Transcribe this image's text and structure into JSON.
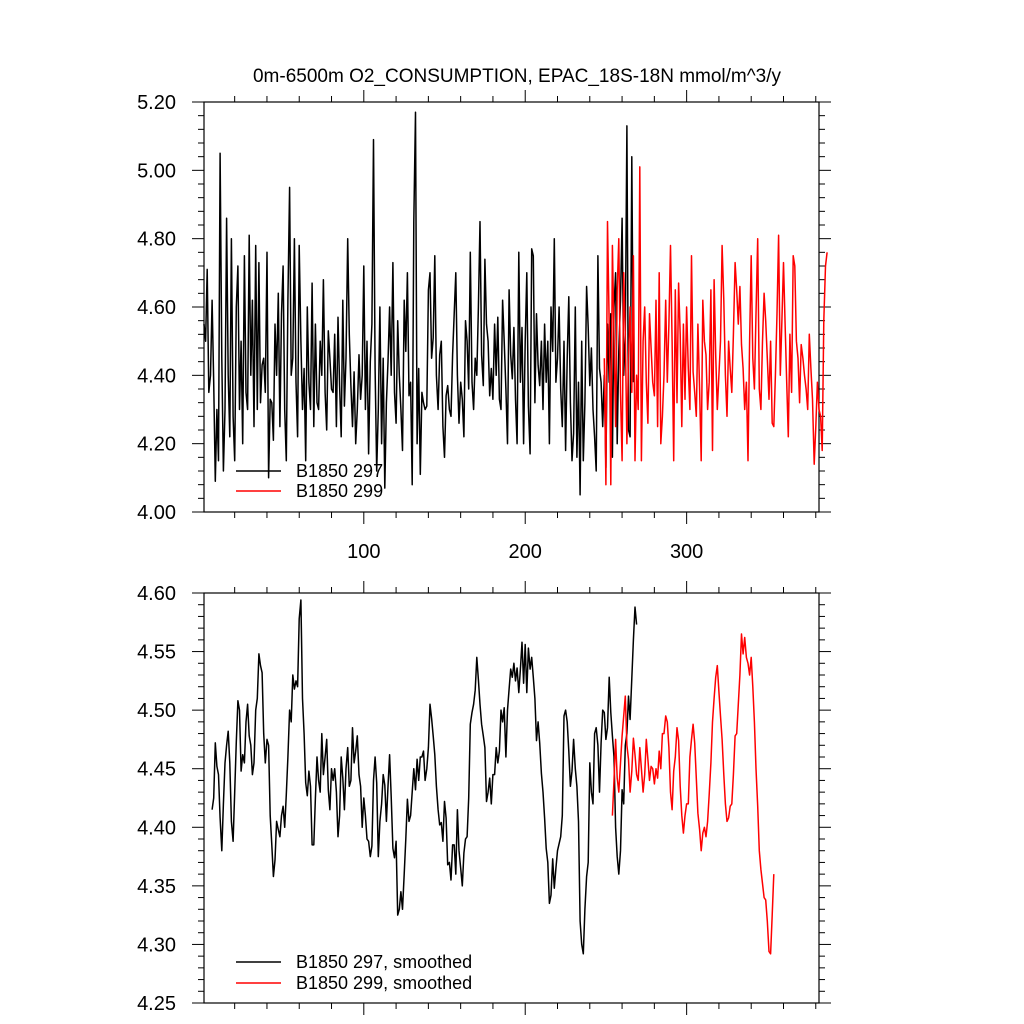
{
  "chart_data": [
    {
      "type": "line",
      "title": "0m-6500m O2_CONSUMPTION, EPAC_18S-18N  mmol/m^3/y",
      "xlim": [
        1,
        382
      ],
      "ylim": [
        4.0,
        5.2
      ],
      "xticks": [
        100,
        200,
        300
      ],
      "xtick_labels": [
        "100",
        "200",
        "300"
      ],
      "yticks": [
        4.0,
        4.2,
        4.4,
        4.6,
        4.8,
        5.0,
        5.2
      ],
      "ytick_labels": [
        "4.00",
        "4.20",
        "4.40",
        "4.60",
        "4.80",
        "5.00",
        "5.20"
      ],
      "legend_position": "bottom-left",
      "series": [
        {
          "name": "B1850 297",
          "color": "#000000",
          "x_start": 1,
          "values": [
            4.55,
            4.5,
            4.71,
            4.35,
            4.4,
            4.62,
            4.38,
            4.09,
            4.3,
            4.15,
            5.05,
            4.45,
            4.12,
            4.3,
            4.86,
            4.4,
            4.22,
            4.8,
            4.28,
            4.15,
            4.6,
            4.72,
            4.3,
            4.5,
            4.2,
            4.75,
            4.35,
            4.3,
            4.81,
            4.4,
            4.62,
            4.25,
            4.78,
            4.3,
            4.73,
            4.32,
            4.43,
            4.45,
            4.35,
            4.76,
            4.1,
            4.33,
            4.32,
            4.21,
            4.55,
            4.4,
            4.64,
            4.25,
            4.58,
            4.72,
            4.3,
            4.15,
            4.62,
            4.95,
            4.4,
            4.45,
            4.8,
            4.38,
            4.22,
            4.78,
            4.5,
            4.3,
            4.42,
            4.15,
            4.6,
            4.38,
            4.3,
            4.67,
            4.25,
            4.55,
            4.32,
            4.3,
            4.5,
            4.4,
            4.68,
            4.35,
            4.24,
            4.53,
            4.45,
            4.36,
            4.35,
            4.52,
            4.25,
            4.57,
            4.37,
            4.22,
            4.62,
            4.31,
            4.45,
            4.8,
            4.52,
            4.37,
            4.25,
            4.41,
            4.2,
            4.3,
            4.46,
            4.33,
            4.4,
            4.72,
            4.3,
            4.5,
            4.17,
            4.44,
            4.55,
            5.09,
            4.42,
            4.12,
            4.3,
            4.6,
            4.2,
            4.45,
            4.07,
            4.32,
            4.44,
            4.6,
            4.4,
            4.73,
            4.35,
            4.26,
            4.56,
            4.4,
            4.3,
            4.18,
            4.62,
            4.47,
            4.7,
            4.34,
            4.38,
            4.08,
            4.85,
            5.17,
            4.2,
            4.42,
            4.11,
            4.35,
            4.32,
            4.3,
            4.31,
            4.65,
            4.7,
            4.45,
            4.51,
            4.75,
            4.4,
            4.3,
            4.46,
            4.5,
            4.25,
            4.16,
            4.34,
            4.37,
            4.3,
            4.28,
            4.46,
            4.58,
            4.7,
            4.4,
            4.26,
            4.38,
            4.33,
            4.22,
            4.56,
            4.5,
            4.36,
            4.76,
            4.38,
            4.3,
            4.45,
            4.4,
            4.6,
            4.85,
            4.46,
            4.37,
            4.74,
            4.55,
            4.5,
            4.34,
            4.42,
            4.33,
            4.55,
            4.4,
            4.57,
            4.33,
            4.3,
            4.62,
            4.5,
            4.36,
            4.2,
            4.65,
            4.46,
            4.39,
            4.54,
            4.33,
            4.2,
            4.76,
            4.38,
            4.54,
            4.2,
            4.5,
            4.7,
            4.31,
            4.17,
            4.77,
            4.75,
            4.32,
            4.58,
            4.43,
            4.37,
            4.5,
            4.3,
            4.55,
            4.38,
            4.5,
            4.2,
            4.6,
            4.47,
            4.8,
            4.38,
            4.45,
            4.6,
            4.36,
            4.25,
            4.5,
            4.18,
            4.45,
            4.63,
            4.32,
            4.15,
            4.23,
            4.6,
            4.16,
            4.38,
            4.05,
            4.5,
            4.15,
            4.32,
            4.66,
            4.54,
            4.37,
            4.48,
            4.3,
            4.22,
            4.12,
            4.75,
            4.42,
            4.38,
            4.25,
            4.4,
            4.13,
            4.55,
            4.38,
            4.58,
            4.16,
            4.6,
            4.7,
            4.2,
            4.47,
            4.62,
            4.86,
            4.4,
            4.52,
            5.13,
            4.24,
            4.22,
            5.04,
            4.38
          ]
        },
        {
          "name": "B1850 299",
          "color": "#ff0000",
          "x_start": 249,
          "values": [
            4.45,
            4.08,
            4.85,
            4.55,
            4.08,
            4.78,
            4.52,
            4.25,
            4.65,
            4.8,
            4.35,
            4.15,
            4.7,
            4.52,
            4.2,
            4.45,
            4.6,
            4.35,
            4.75,
            4.15,
            4.4,
            4.3,
            5.01,
            4.15,
            4.5,
            4.6,
            4.38,
            4.26,
            4.58,
            4.48,
            4.38,
            4.34,
            4.62,
            4.25,
            4.7,
            4.2,
            4.28,
            4.4,
            4.62,
            4.38,
            4.55,
            4.78,
            4.5,
            4.15,
            4.65,
            4.32,
            4.67,
            4.52,
            4.25,
            4.55,
            4.33,
            4.6,
            4.42,
            4.3,
            4.75,
            4.41,
            4.35,
            4.28,
            4.55,
            4.36,
            4.15,
            4.62,
            4.5,
            4.46,
            4.3,
            4.38,
            4.65,
            4.18,
            4.68,
            4.46,
            4.3,
            4.4,
            4.5,
            4.78,
            4.62,
            4.4,
            4.28,
            4.5,
            4.42,
            4.35,
            4.52,
            4.73,
            4.65,
            4.55,
            4.66,
            4.49,
            4.42,
            4.3,
            4.38,
            4.15,
            4.5,
            4.75,
            4.45,
            4.36,
            4.58,
            4.8,
            4.36,
            4.3,
            4.5,
            4.64,
            4.56,
            4.45,
            4.33,
            4.5,
            4.26,
            4.25,
            4.4,
            4.58,
            4.81,
            4.4,
            4.56,
            4.73,
            4.55,
            4.38,
            4.22,
            4.52,
            4.35,
            4.75,
            4.72,
            4.5,
            4.45,
            4.32,
            4.49,
            4.45,
            4.4,
            4.36,
            4.3,
            4.52,
            4.42,
            4.33,
            4.14,
            4.25,
            4.38,
            4.3,
            4.28,
            4.18,
            4.56,
            4.72,
            4.76
          ]
        }
      ]
    },
    {
      "type": "line",
      "xlim": [
        1,
        382
      ],
      "ylim": [
        4.25,
        4.6
      ],
      "xticks": [
        100,
        200,
        300
      ],
      "yticks": [
        4.25,
        4.3,
        4.35,
        4.4,
        4.45,
        4.5,
        4.55,
        4.6
      ],
      "ytick_labels": [
        "4.25",
        "4.30",
        "4.35",
        "4.40",
        "4.45",
        "4.50",
        "4.55",
        "4.60"
      ],
      "legend_position": "bottom-left",
      "series": [
        {
          "name": "B1850 297, smoothed",
          "color": "#000000",
          "x_start": 6,
          "values": [
            4.415,
            4.425,
            4.472,
            4.452,
            4.445,
            4.408,
            4.38,
            4.42,
            4.455,
            4.47,
            4.482,
            4.455,
            4.405,
            4.388,
            4.43,
            4.473,
            4.508,
            4.5,
            4.448,
            4.462,
            4.455,
            4.49,
            4.505,
            4.478,
            4.47,
            4.445,
            4.455,
            4.5,
            4.51,
            4.548,
            4.538,
            4.532,
            4.48,
            4.455,
            4.475,
            4.47,
            4.41,
            4.385,
            4.358,
            4.372,
            4.405,
            4.398,
            4.392,
            4.41,
            4.418,
            4.4,
            4.428,
            4.46,
            4.5,
            4.49,
            4.53,
            4.518,
            4.525,
            4.52,
            4.578,
            4.594,
            4.51,
            4.48,
            4.438,
            4.427,
            4.448,
            4.435,
            4.385,
            4.385,
            4.425,
            4.46,
            4.44,
            4.43,
            4.48,
            4.445,
            4.46,
            4.475,
            4.432,
            4.415,
            4.45,
            4.44,
            4.45,
            4.43,
            4.392,
            4.41,
            4.46,
            4.442,
            4.415,
            4.45,
            4.468,
            4.435,
            4.44,
            4.485,
            4.455,
            4.465,
            4.478,
            4.445,
            4.435,
            4.4,
            4.425,
            4.41,
            4.39,
            4.388,
            4.375,
            4.384,
            4.44,
            4.46,
            4.438,
            4.375,
            4.405,
            4.42,
            4.445,
            4.436,
            4.405,
            4.435,
            4.462,
            4.426,
            4.382,
            4.374,
            4.388,
            4.325,
            4.33,
            4.345,
            4.33,
            4.36,
            4.39,
            4.424,
            4.405,
            4.41,
            4.43,
            4.45,
            4.432,
            4.458,
            4.44,
            4.46,
            4.46,
            4.465,
            4.44,
            4.45,
            4.468,
            4.505,
            4.493,
            4.478,
            4.462,
            4.435,
            4.415,
            4.402,
            4.404,
            4.388,
            4.422,
            4.408,
            4.368,
            4.37,
            4.355,
            4.385,
            4.385,
            4.36,
            4.415,
            4.38,
            4.365,
            4.35,
            4.378,
            4.39,
            4.392,
            4.425,
            4.488,
            4.498,
            4.505,
            4.517,
            4.545,
            4.526,
            4.505,
            4.488,
            4.478,
            4.468,
            4.422,
            4.43,
            4.442,
            4.42,
            4.445,
            4.445,
            4.468,
            4.455,
            4.465,
            4.5,
            4.49,
            4.502,
            4.46,
            4.5,
            4.518,
            4.535,
            4.528,
            4.54,
            4.525,
            4.536,
            4.515,
            4.535,
            4.558,
            4.523,
            4.556,
            4.515,
            4.553,
            4.535,
            4.545,
            4.528,
            4.51,
            4.474,
            4.49,
            4.472,
            4.446,
            4.43,
            4.408,
            4.382,
            4.37,
            4.335,
            4.342,
            4.373,
            4.348,
            4.365,
            4.38,
            4.386,
            4.392,
            4.41,
            4.495,
            4.5,
            4.49,
            4.465,
            4.435,
            4.448,
            4.475,
            4.45,
            4.435,
            4.405,
            4.32,
            4.3,
            4.292,
            4.33,
            4.358,
            4.37,
            4.455,
            4.43,
            4.42,
            4.48,
            4.485,
            4.47,
            4.43,
            4.472,
            4.5,
            4.498,
            4.475,
            4.485,
            4.528,
            4.498,
            4.478,
            4.46,
            4.4,
            4.375,
            4.36,
            4.38,
            4.432,
            4.42,
            4.47,
            4.48,
            4.512,
            4.492,
            4.527,
            4.56,
            4.588,
            4.573
          ]
        },
        {
          "name": "B1850 299, smoothed",
          "color": "#ff0000",
          "x_start": 254,
          "values": [
            4.41,
            4.44,
            4.475,
            4.442,
            4.43,
            4.455,
            4.478,
            4.495,
            4.512,
            4.47,
            4.458,
            4.43,
            4.448,
            4.476,
            4.462,
            4.445,
            4.44,
            4.468,
            4.45,
            4.43,
            4.445,
            4.475,
            4.458,
            4.44,
            4.452,
            4.45,
            4.437,
            4.45,
            4.442,
            4.465,
            4.45,
            4.48,
            4.48,
            4.495,
            4.49,
            4.468,
            4.43,
            4.415,
            4.448,
            4.46,
            4.485,
            4.474,
            4.435,
            4.41,
            4.395,
            4.41,
            4.42,
            4.42,
            4.46,
            4.475,
            4.488,
            4.472,
            4.442,
            4.412,
            4.398,
            4.38,
            4.395,
            4.4,
            4.392,
            4.405,
            4.428,
            4.455,
            4.49,
            4.51,
            4.528,
            4.538,
            4.516,
            4.495,
            4.475,
            4.445,
            4.42,
            4.405,
            4.408,
            4.418,
            4.42,
            4.445,
            4.478,
            4.48,
            4.505,
            4.53,
            4.565,
            4.548,
            4.562,
            4.545,
            4.54,
            4.53,
            4.545,
            4.52,
            4.49,
            4.45,
            4.418,
            4.38,
            4.364,
            4.352,
            4.34,
            4.338,
            4.32,
            4.294,
            4.292,
            4.325,
            4.36
          ]
        }
      ]
    }
  ]
}
